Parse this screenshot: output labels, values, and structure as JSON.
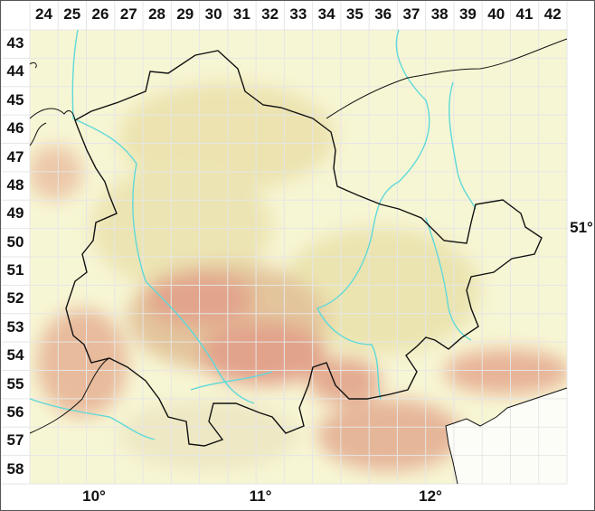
{
  "grid": {
    "columns": [
      "24",
      "25",
      "26",
      "27",
      "28",
      "29",
      "30",
      "31",
      "32",
      "33",
      "34",
      "35",
      "36",
      "37",
      "38",
      "39",
      "40",
      "41",
      "42"
    ],
    "rows": [
      "43",
      "44",
      "45",
      "46",
      "47",
      "48",
      "49",
      "50",
      "51",
      "52",
      "53",
      "54",
      "55",
      "56",
      "57",
      "58"
    ]
  },
  "longitude_labels": [
    "10°",
    "11°",
    "12°"
  ],
  "latitude_labels": [
    "51°"
  ],
  "colors": {
    "lowland": "#f6f6cf",
    "hills": "#e6e0a8",
    "mountains": "#e3a38c",
    "rivers": "#5fd9d9",
    "border": "#111111",
    "grid": "#e8e8e8"
  }
}
